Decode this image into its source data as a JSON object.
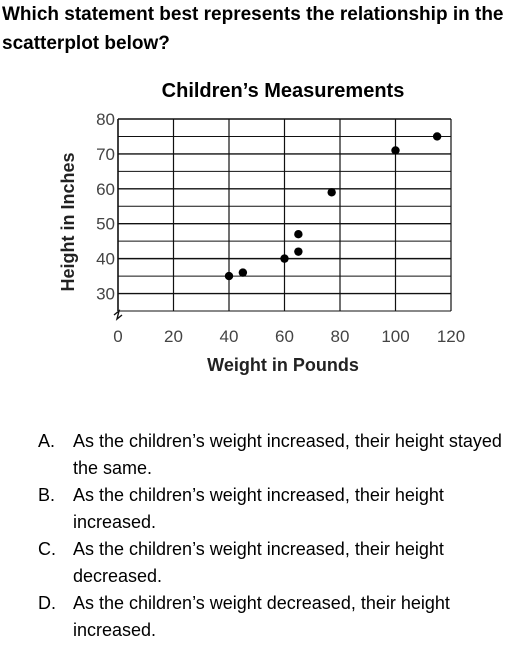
{
  "question": "Which statement best represents the relationship in the scatterplot below?",
  "chart_data": {
    "type": "scatter",
    "title": "Children’s Measurements",
    "xlabel": "Weight in Pounds",
    "ylabel": "Height in Inches",
    "xlim": [
      0,
      120
    ],
    "ylim": [
      25,
      80
    ],
    "x_ticks": [
      0,
      20,
      40,
      60,
      80,
      100,
      120
    ],
    "y_ticks": [
      30,
      40,
      50,
      60,
      70,
      80
    ],
    "grid": true,
    "points": [
      {
        "x": 40,
        "y": 35
      },
      {
        "x": 45,
        "y": 36
      },
      {
        "x": 60,
        "y": 40
      },
      {
        "x": 65,
        "y": 42
      },
      {
        "x": 65,
        "y": 47
      },
      {
        "x": 77,
        "y": 59
      },
      {
        "x": 100,
        "y": 71
      },
      {
        "x": 115,
        "y": 75
      }
    ]
  },
  "options": [
    {
      "letter": "A.",
      "text": "As the children’s weight increased, their height stayed the same."
    },
    {
      "letter": "B.",
      "text": "As the children’s weight increased, their height increased."
    },
    {
      "letter": "C.",
      "text": "As the children’s weight increased, their height decreased."
    },
    {
      "letter": "D.",
      "text": "As the children’s weight decreased, their height increased."
    }
  ]
}
